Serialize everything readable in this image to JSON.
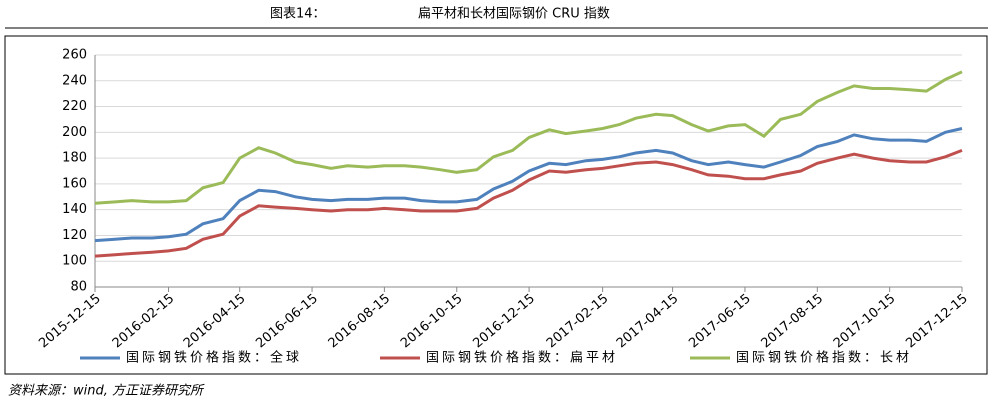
{
  "chart_data": {
    "type": "line",
    "title_label": "图表14：",
    "title": "扁平材和长材国际钢价 CRU 指数",
    "source": "资料来源：wind, 方正证券研究所",
    "x": [
      "2015-12-15",
      "2016-01-01",
      "2016-01-15",
      "2016-02-01",
      "2016-02-15",
      "2016-03-01",
      "2016-03-15",
      "2016-04-01",
      "2016-04-15",
      "2016-05-01",
      "2016-05-15",
      "2016-06-01",
      "2016-06-15",
      "2016-07-01",
      "2016-07-15",
      "2016-08-01",
      "2016-08-15",
      "2016-09-01",
      "2016-09-15",
      "2016-10-01",
      "2016-10-15",
      "2016-11-01",
      "2016-11-15",
      "2016-12-01",
      "2016-12-15",
      "2017-01-01",
      "2017-01-15",
      "2017-02-01",
      "2017-02-15",
      "2017-03-01",
      "2017-03-15",
      "2017-04-01",
      "2017-04-15",
      "2017-05-01",
      "2017-05-15",
      "2017-06-01",
      "2017-06-15",
      "2017-07-01",
      "2017-07-15",
      "2017-08-01",
      "2017-08-15",
      "2017-09-01",
      "2017-09-15",
      "2017-10-01",
      "2017-10-15",
      "2017-11-01",
      "2017-11-15",
      "2017-12-01",
      "2017-12-15"
    ],
    "series": [
      {
        "name": "国际钢铁价格指数：全球",
        "color": "#4f81bd",
        "values": [
          116,
          117,
          118,
          118,
          119,
          121,
          129,
          133,
          147,
          155,
          154,
          150,
          148,
          147,
          148,
          148,
          149,
          149,
          147,
          146,
          146,
          148,
          156,
          162,
          170,
          176,
          175,
          178,
          179,
          181,
          184,
          186,
          184,
          178,
          175,
          177,
          175,
          173,
          177,
          182,
          189,
          193,
          198,
          195,
          194,
          194,
          193,
          200,
          203
        ]
      },
      {
        "name": "国际钢铁价格指数：扁平材",
        "color": "#c0504d",
        "values": [
          104,
          105,
          106,
          107,
          108,
          110,
          117,
          121,
          135,
          143,
          142,
          141,
          140,
          139,
          140,
          140,
          141,
          140,
          139,
          139,
          139,
          141,
          149,
          155,
          163,
          170,
          169,
          171,
          172,
          174,
          176,
          177,
          175,
          171,
          167,
          166,
          164,
          164,
          167,
          170,
          176,
          180,
          183,
          180,
          178,
          177,
          177,
          181,
          186
        ]
      },
      {
        "name": "国际钢铁价格指数：长材",
        "color": "#9bbb59",
        "values": [
          145,
          146,
          147,
          146,
          146,
          147,
          157,
          161,
          180,
          188,
          184,
          177,
          175,
          172,
          174,
          173,
          174,
          174,
          173,
          171,
          169,
          171,
          181,
          186,
          196,
          202,
          199,
          201,
          203,
          206,
          211,
          214,
          213,
          206,
          201,
          205,
          206,
          197,
          210,
          214,
          224,
          231,
          236,
          234,
          234,
          233,
          232,
          241,
          247
        ]
      }
    ],
    "xticks": [
      "2015-12-15",
      "2016-02-15",
      "2016-04-15",
      "2016-06-15",
      "2016-08-15",
      "2016-10-15",
      "2016-12-15",
      "2017-02-15",
      "2017-04-15",
      "2017-06-15",
      "2017-08-15",
      "2017-10-15",
      "2017-12-15"
    ],
    "ylim": [
      80,
      260
    ],
    "yticks": [
      80,
      100,
      120,
      140,
      160,
      180,
      200,
      220,
      240,
      260
    ],
    "grid": true
  }
}
